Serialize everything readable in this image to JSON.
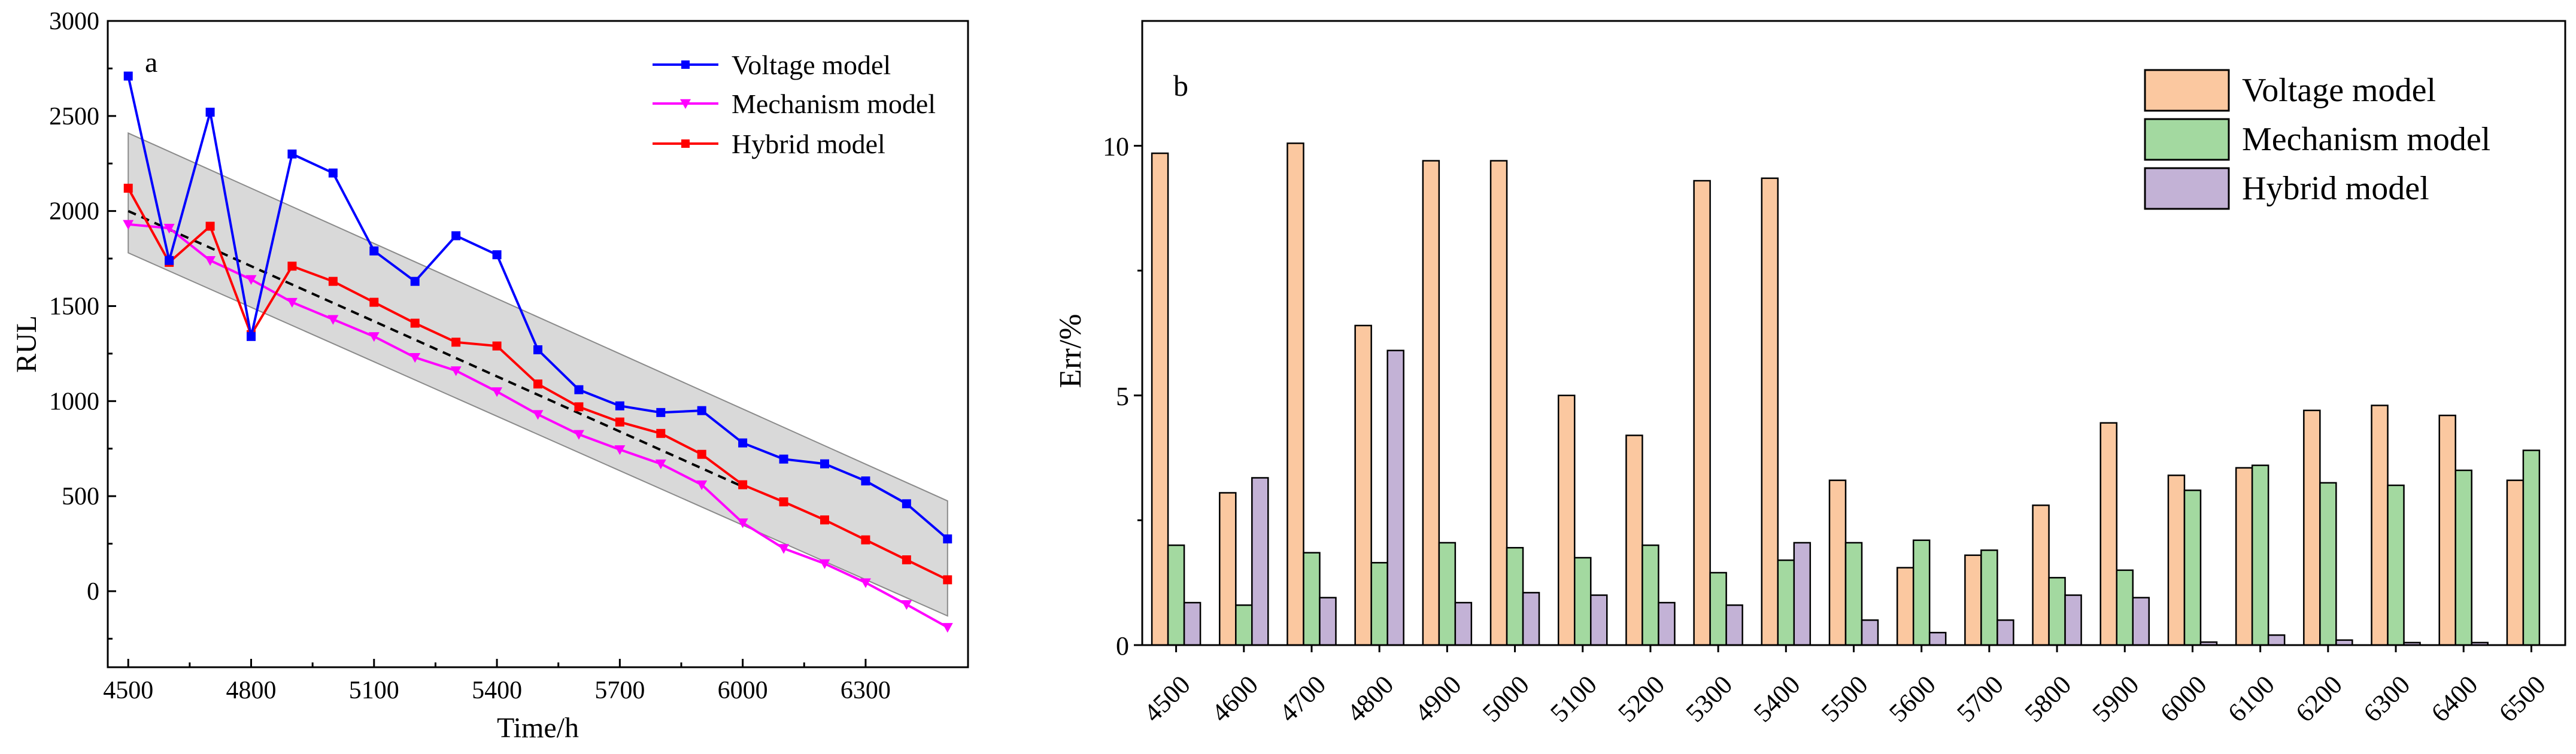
{
  "chart_data": [
    {
      "type": "line",
      "panel_label": "a",
      "xlabel": "Time/h",
      "ylabel": "RUL",
      "xlim": [
        4450,
        6550
      ],
      "ylim": [
        -400,
        3000
      ],
      "x_ticks": [
        4500,
        4800,
        5100,
        5400,
        5700,
        6000,
        6300
      ],
      "y_ticks": [
        0,
        500,
        1000,
        1500,
        2000,
        2500,
        3000
      ],
      "x_tick_labels": [
        "4500",
        "4800",
        "5100",
        "5400",
        "5700",
        "6000",
        "6300"
      ],
      "y_tick_labels": [
        "0",
        "500",
        "1000",
        "1500",
        "2000",
        "2500",
        "3000"
      ],
      "grid": false,
      "legend_position": "top-right",
      "x": [
        4500,
        4600,
        4700,
        4800,
        4900,
        5000,
        5100,
        5200,
        5300,
        5400,
        5500,
        5600,
        5700,
        5800,
        5900,
        6000,
        6100,
        6200,
        6300,
        6400,
        6500
      ],
      "series": [
        {
          "name": "Voltage model",
          "color": "#0000ff",
          "marker": "square",
          "values": [
            2710,
            1740,
            2520,
            1340,
            2300,
            2200,
            1790,
            1630,
            1870,
            1770,
            1270,
            1060,
            975,
            940,
            950,
            780,
            695,
            670,
            580,
            460,
            275
          ]
        },
        {
          "name": "Mechanism model",
          "color": "#ff00ff",
          "marker": "triangle-down",
          "values": [
            1930,
            1910,
            1740,
            1640,
            1520,
            1430,
            1340,
            1230,
            1160,
            1050,
            930,
            825,
            745,
            670,
            560,
            360,
            225,
            145,
            45,
            -70,
            -190
          ]
        },
        {
          "name": "Hybrid model",
          "color": "#ff0000",
          "marker": "square",
          "values": [
            2120,
            1730,
            1920,
            1350,
            1710,
            1630,
            1520,
            1410,
            1310,
            1290,
            1090,
            970,
            890,
            830,
            720,
            560,
            470,
            375,
            270,
            165,
            60
          ]
        }
      ],
      "true_rul_line": {
        "style": "dashed",
        "color": "#000000",
        "x": [
          4500,
          6000
        ],
        "y": [
          2000,
          550
        ]
      },
      "confidence_band": {
        "color": "#d9d9d9",
        "x": [
          4500,
          6500
        ],
        "upper": [
          2410,
          475
        ],
        "lower": [
          1780,
          -130
        ]
      }
    },
    {
      "type": "bar",
      "panel_label": "b",
      "xlabel": "",
      "ylabel": "Err/%",
      "ylim": [
        0,
        12.5
      ],
      "y_ticks": [
        0,
        5,
        10
      ],
      "y_tick_labels": [
        "0",
        "5",
        "10"
      ],
      "grid": false,
      "legend_position": "top-right",
      "categories": [
        "4500",
        "4600",
        "4700",
        "4800",
        "4900",
        "5000",
        "5100",
        "5200",
        "5300",
        "5400",
        "5500",
        "5600",
        "5700",
        "5800",
        "5900",
        "6000",
        "6100",
        "6200",
        "6300",
        "6400",
        "6500"
      ],
      "series": [
        {
          "name": "Voltage model",
          "color": "#fbc8a0",
          "values": [
            9.85,
            3.05,
            10.05,
            6.4,
            9.7,
            9.7,
            5.0,
            4.2,
            9.3,
            9.35,
            3.3,
            1.55,
            1.8,
            2.8,
            4.45,
            3.4,
            3.55,
            4.7,
            4.8,
            4.6,
            3.3
          ]
        },
        {
          "name": "Mechanism model",
          "color": "#a3d9a0",
          "values": [
            2.0,
            0.8,
            1.85,
            1.65,
            2.05,
            1.95,
            1.75,
            2.0,
            1.45,
            1.7,
            2.05,
            2.1,
            1.9,
            1.35,
            1.5,
            3.1,
            3.6,
            3.25,
            3.2,
            3.5,
            3.9
          ]
        },
        {
          "name": "Hybrid model",
          "color": "#c3b2d6",
          "values": [
            0.85,
            3.35,
            0.95,
            5.9,
            0.85,
            1.05,
            1.0,
            0.85,
            0.8,
            2.05,
            0.5,
            0.25,
            0.5,
            1.0,
            0.95,
            0.06,
            0.2,
            0.1,
            0.05,
            0.05,
            0
          ]
        }
      ]
    }
  ]
}
